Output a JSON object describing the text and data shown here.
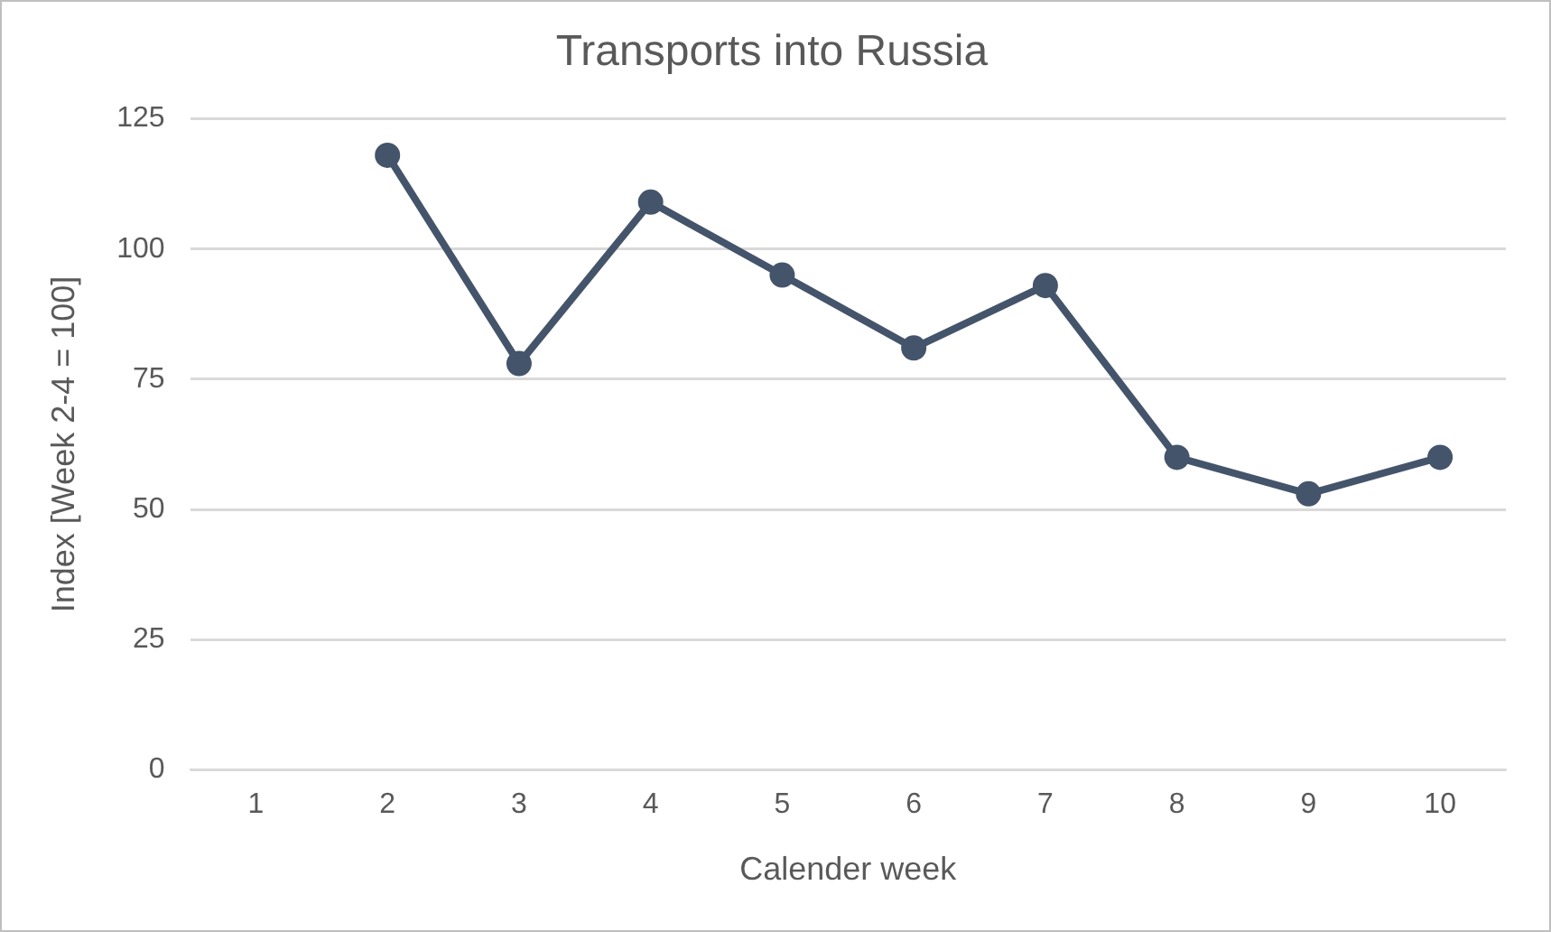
{
  "chart_data": {
    "type": "line",
    "title": "Transports into Russia",
    "xlabel": "Calender week",
    "ylabel": "Index [Week 2-4 = 100]",
    "categories": [
      "1",
      "2",
      "3",
      "4",
      "5",
      "6",
      "7",
      "8",
      "9",
      "10"
    ],
    "series": [
      {
        "color": "#44546a",
        "values": [
          null,
          118,
          78,
          109,
          95,
          81,
          93,
          60,
          53,
          60
        ]
      }
    ],
    "ylim": [
      0,
      125
    ],
    "yticks": [
      0,
      25,
      50,
      75,
      100,
      125
    ],
    "grid": "y",
    "legend": false,
    "marker": "circle",
    "line_style": "solid"
  }
}
